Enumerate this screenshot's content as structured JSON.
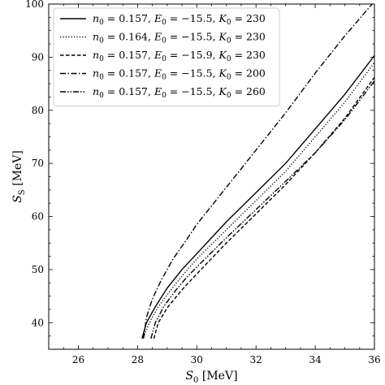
{
  "chart_data": {
    "type": "line",
    "xlabel": "S_0 [MeV]",
    "ylabel": "S_S [MeV]",
    "xlim": [
      25,
      36
    ],
    "ylim": [
      35,
      100
    ],
    "x_ticks": [
      26,
      28,
      30,
      32,
      34,
      36
    ],
    "y_ticks": [
      40,
      50,
      60,
      70,
      80,
      90,
      100
    ],
    "grid": false,
    "legend_position": "top-left",
    "series": [
      {
        "name": "n_0 = 0.157, E_0 = -15.5, K_0 = 230",
        "dash": "solid",
        "x": [
          28.15,
          28.3,
          28.6,
          29.0,
          29.5,
          30.0,
          31.0,
          32.0,
          33.0,
          34.0,
          35.0,
          36.0
        ],
        "y": [
          37.0,
          40.0,
          43.0,
          46.5,
          50.0,
          53.0,
          59.0,
          64.5,
          70.0,
          76.5,
          83.0,
          90.3
        ]
      },
      {
        "name": "n_0 = 0.164, E_0 = -15.5, K_0 = 230",
        "dash": "dotted",
        "x": [
          28.2,
          28.4,
          28.7,
          29.1,
          29.5,
          30.0,
          31.0,
          32.0,
          33.0,
          34.0,
          35.0,
          36.0
        ],
        "y": [
          37.2,
          40.0,
          43.0,
          46.0,
          48.8,
          52.0,
          57.5,
          63.0,
          68.5,
          75.0,
          81.5,
          89.0
        ]
      },
      {
        "name": "n_0 = 0.157, E_0 = -15.9, K_0 = 230",
        "dash": "dashed",
        "x": [
          28.55,
          28.7,
          29.0,
          29.5,
          30.0,
          31.0,
          32.0,
          33.0,
          34.0,
          35.0,
          36.0
        ],
        "y": [
          37.0,
          40.0,
          42.8,
          46.2,
          49.2,
          55.0,
          60.5,
          66.0,
          72.0,
          78.5,
          86.2
        ]
      },
      {
        "name": "n_0 = 0.157, E_0 = -15.5, K_0 = 200",
        "dash": "dashdot",
        "x": [
          28.2,
          28.3,
          28.5,
          28.8,
          29.2,
          29.7,
          30.0,
          31.0,
          32.0,
          33.0,
          34.0,
          35.0,
          36.0
        ],
        "y": [
          37.0,
          41.0,
          44.5,
          48.0,
          52.0,
          56.0,
          58.5,
          65.5,
          72.5,
          79.5,
          87.0,
          94.0,
          100.5
        ]
      },
      {
        "name": "n_0 = 0.157, E_0 = -15.5, K_0 = 260",
        "dash": "dashdotdot",
        "x": [
          28.45,
          28.6,
          28.9,
          29.3,
          29.7,
          30.0,
          31.0,
          32.0,
          33.0,
          34.0,
          35.0,
          36.0
        ],
        "y": [
          37.0,
          40.0,
          43.2,
          46.2,
          48.8,
          50.5,
          56.0,
          61.3,
          66.6,
          72.0,
          78.2,
          85.5
        ]
      }
    ]
  }
}
